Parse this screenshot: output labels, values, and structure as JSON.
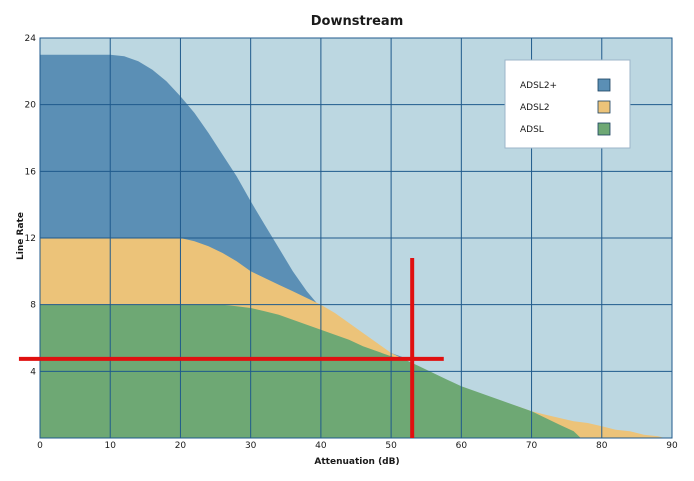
{
  "chart_data": {
    "type": "area",
    "title": "Downstream",
    "xlabel": "Attenuation (dB)",
    "ylabel": "Line Rate",
    "xlim": [
      0,
      90
    ],
    "ylim": [
      0,
      24
    ],
    "xticks": [
      0,
      10,
      20,
      30,
      40,
      50,
      60,
      70,
      80,
      90
    ],
    "yticks": [
      4,
      8,
      12,
      16,
      20,
      24
    ],
    "grid": true,
    "legend_position": "top-right",
    "series": [
      {
        "name": "ADSL2+",
        "color": "#5b8fb5",
        "points": [
          [
            0,
            23
          ],
          [
            10,
            23
          ],
          [
            12,
            22.9
          ],
          [
            14,
            22.6
          ],
          [
            16,
            22.1
          ],
          [
            18,
            21.4
          ],
          [
            20,
            20.5
          ],
          [
            22,
            19.5
          ],
          [
            24,
            18.3
          ],
          [
            26,
            17.0
          ],
          [
            28,
            15.7
          ],
          [
            30,
            14.2
          ],
          [
            32,
            12.8
          ],
          [
            34,
            11.4
          ],
          [
            36,
            10.0
          ],
          [
            38,
            8.8
          ],
          [
            40,
            7.8
          ],
          [
            42,
            7.0
          ],
          [
            44,
            6.3
          ],
          [
            46,
            5.8
          ],
          [
            48,
            5.4
          ],
          [
            50,
            5.1
          ],
          [
            52,
            4.8
          ]
        ]
      },
      {
        "name": "ADSL2",
        "color": "#ecc379",
        "points": [
          [
            0,
            12
          ],
          [
            20,
            12
          ],
          [
            22,
            11.8
          ],
          [
            24,
            11.5
          ],
          [
            26,
            11.1
          ],
          [
            28,
            10.6
          ],
          [
            30,
            10.0
          ],
          [
            32,
            9.6
          ],
          [
            34,
            9.2
          ],
          [
            36,
            8.8
          ],
          [
            38,
            8.4
          ],
          [
            40,
            8.0
          ],
          [
            42,
            7.5
          ],
          [
            44,
            6.9
          ],
          [
            46,
            6.3
          ],
          [
            48,
            5.7
          ],
          [
            50,
            5.1
          ],
          [
            52,
            4.7
          ],
          [
            54,
            4.2
          ],
          [
            56,
            3.8
          ],
          [
            58,
            3.4
          ],
          [
            60,
            3.0
          ],
          [
            62,
            2.7
          ],
          [
            64,
            2.4
          ],
          [
            66,
            2.1
          ],
          [
            68,
            1.9
          ],
          [
            70,
            1.6
          ],
          [
            72,
            1.4
          ],
          [
            74,
            1.2
          ],
          [
            76,
            1.0
          ],
          [
            78,
            0.9
          ],
          [
            80,
            0.7
          ],
          [
            82,
            0.5
          ],
          [
            84,
            0.4
          ],
          [
            86,
            0.2
          ],
          [
            88,
            0.1
          ],
          [
            89,
            0
          ]
        ]
      },
      {
        "name": "ADSL",
        "color": "#6ea874",
        "points": [
          [
            0,
            8
          ],
          [
            26,
            8
          ],
          [
            28,
            7.9
          ],
          [
            30,
            7.8
          ],
          [
            32,
            7.6
          ],
          [
            34,
            7.4
          ],
          [
            36,
            7.1
          ],
          [
            38,
            6.8
          ],
          [
            40,
            6.5
          ],
          [
            42,
            6.2
          ],
          [
            44,
            5.9
          ],
          [
            46,
            5.5
          ],
          [
            48,
            5.2
          ],
          [
            50,
            4.9
          ],
          [
            52,
            4.7
          ],
          [
            54,
            4.3
          ],
          [
            56,
            3.9
          ],
          [
            58,
            3.5
          ],
          [
            60,
            3.1
          ],
          [
            62,
            2.8
          ],
          [
            64,
            2.5
          ],
          [
            66,
            2.2
          ],
          [
            68,
            1.9
          ],
          [
            70,
            1.6
          ],
          [
            72,
            1.2
          ],
          [
            74,
            0.8
          ],
          [
            76,
            0.4
          ],
          [
            77,
            0
          ]
        ]
      }
    ],
    "annotation": {
      "type": "crosshair",
      "color": "#e01010",
      "x": 53,
      "y": 4.75,
      "hline_x_range": [
        -3,
        57.5
      ],
      "vline_y_range": [
        0,
        10.8
      ]
    }
  }
}
